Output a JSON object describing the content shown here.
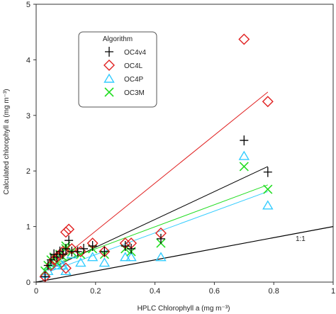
{
  "chart_data": {
    "type": "scatter",
    "xlabel": "HPLC Chlorophyll a (mg m⁻³)",
    "ylabel": "Calculated chlorophyll a (mg m⁻³)",
    "xlim": [
      0,
      1
    ],
    "ylim": [
      0,
      5
    ],
    "x_ticks": [
      0,
      0.2,
      0.4,
      0.6,
      0.8,
      1
    ],
    "x_tick_labels": [
      "0",
      "0.2",
      "0.4",
      "0.6",
      "0.8",
      "1"
    ],
    "y_ticks": [
      0,
      1,
      2,
      3,
      4,
      5
    ],
    "y_tick_labels": [
      "0",
      "1",
      "2",
      "3",
      "4",
      "5"
    ],
    "grid": false,
    "legend": {
      "title": "Algorithm",
      "placement": "top-left"
    },
    "series": [
      {
        "name": "OC4v4",
        "marker": "plus",
        "color": "#000000",
        "points": [
          [
            0.03,
            0.1
          ],
          [
            0.04,
            0.3
          ],
          [
            0.05,
            0.4
          ],
          [
            0.06,
            0.5
          ],
          [
            0.07,
            0.45
          ],
          [
            0.08,
            0.55
          ],
          [
            0.09,
            0.5
          ],
          [
            0.1,
            0.6
          ],
          [
            0.11,
            0.75
          ],
          [
            0.12,
            0.55
          ],
          [
            0.14,
            0.55
          ],
          [
            0.16,
            0.6
          ],
          [
            0.19,
            0.65
          ],
          [
            0.23,
            0.55
          ],
          [
            0.3,
            0.65
          ],
          [
            0.32,
            0.6
          ],
          [
            0.42,
            0.78
          ],
          [
            0.7,
            2.55
          ],
          [
            0.78,
            1.98
          ]
        ],
        "fit": [
          [
            0.07,
            0.3
          ],
          [
            0.78,
            2.08
          ]
        ]
      },
      {
        "name": "OC4L",
        "marker": "diamond",
        "color": "#e02020",
        "points": [
          [
            0.03,
            0.1
          ],
          [
            0.05,
            0.3
          ],
          [
            0.06,
            0.4
          ],
          [
            0.07,
            0.45
          ],
          [
            0.08,
            0.5
          ],
          [
            0.09,
            0.55
          ],
          [
            0.1,
            0.25
          ],
          [
            0.1,
            0.9
          ],
          [
            0.11,
            0.95
          ],
          [
            0.12,
            0.6
          ],
          [
            0.15,
            0.55
          ],
          [
            0.19,
            0.7
          ],
          [
            0.23,
            0.55
          ],
          [
            0.3,
            0.7
          ],
          [
            0.32,
            0.7
          ],
          [
            0.42,
            0.88
          ],
          [
            0.7,
            4.37
          ],
          [
            0.78,
            3.25
          ]
        ],
        "fit": [
          [
            0.08,
            0.4
          ],
          [
            0.78,
            3.42
          ]
        ]
      },
      {
        "name": "OC4P",
        "marker": "triangle",
        "color": "#33ccff",
        "points": [
          [
            0.03,
            0.15
          ],
          [
            0.04,
            0.2
          ],
          [
            0.05,
            0.3
          ],
          [
            0.06,
            0.35
          ],
          [
            0.07,
            0.3
          ],
          [
            0.08,
            0.35
          ],
          [
            0.09,
            0.3
          ],
          [
            0.1,
            0.2
          ],
          [
            0.12,
            0.5
          ],
          [
            0.15,
            0.35
          ],
          [
            0.19,
            0.45
          ],
          [
            0.23,
            0.35
          ],
          [
            0.3,
            0.45
          ],
          [
            0.32,
            0.45
          ],
          [
            0.42,
            0.45
          ],
          [
            0.7,
            2.27
          ],
          [
            0.78,
            1.38
          ]
        ],
        "fit": [
          [
            0.05,
            0.2
          ],
          [
            0.78,
            1.63
          ]
        ]
      },
      {
        "name": "OC3M",
        "marker": "x",
        "color": "#22dd22",
        "points": [
          [
            0.03,
            0.2
          ],
          [
            0.04,
            0.3
          ],
          [
            0.05,
            0.4
          ],
          [
            0.06,
            0.45
          ],
          [
            0.07,
            0.35
          ],
          [
            0.08,
            0.5
          ],
          [
            0.09,
            0.45
          ],
          [
            0.1,
            0.65
          ],
          [
            0.1,
            0.6
          ],
          [
            0.12,
            0.55
          ],
          [
            0.15,
            0.5
          ],
          [
            0.19,
            0.6
          ],
          [
            0.23,
            0.5
          ],
          [
            0.3,
            0.6
          ],
          [
            0.32,
            0.55
          ],
          [
            0.42,
            0.7
          ],
          [
            0.7,
            2.08
          ],
          [
            0.78,
            1.67
          ]
        ],
        "fit": [
          [
            0.05,
            0.3
          ],
          [
            0.78,
            1.75
          ]
        ]
      }
    ],
    "reference_line": {
      "label": "1:1",
      "points": [
        [
          0,
          0
        ],
        [
          1,
          1
        ]
      ]
    }
  }
}
